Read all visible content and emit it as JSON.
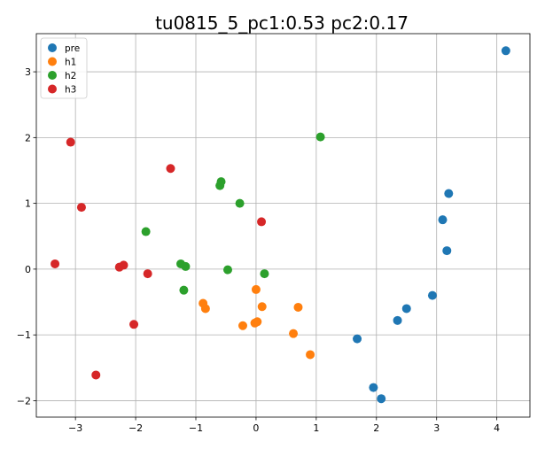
{
  "chart_data": {
    "type": "scatter",
    "title": "tu0815_5_pc1:0.53 pc2:0.17",
    "xlabel": "",
    "ylabel": "",
    "xlim": [
      -3.65,
      4.55
    ],
    "ylim": [
      -2.25,
      3.58
    ],
    "xticks": [
      -3,
      -2,
      -1,
      0,
      1,
      2,
      3,
      4
    ],
    "yticks": [
      -2,
      -1,
      0,
      1,
      2,
      3
    ],
    "xtick_labels": [
      "−3",
      "−2",
      "−1",
      "0",
      "1",
      "2",
      "3",
      "4"
    ],
    "ytick_labels": [
      "−2",
      "−1",
      "0",
      "1",
      "2",
      "3"
    ],
    "grid": true,
    "legend_position": "top-left",
    "series": [
      {
        "name": "pre",
        "color": "#1f77b4",
        "points": [
          [
            4.15,
            3.32
          ],
          [
            3.2,
            1.15
          ],
          [
            3.1,
            0.75
          ],
          [
            3.17,
            0.28
          ],
          [
            2.93,
            -0.4
          ],
          [
            2.5,
            -0.6
          ],
          [
            2.35,
            -0.78
          ],
          [
            1.68,
            -1.06
          ],
          [
            1.95,
            -1.8
          ],
          [
            2.08,
            -1.97
          ]
        ]
      },
      {
        "name": "h1",
        "color": "#ff7f0e",
        "points": [
          [
            0.0,
            -0.31
          ],
          [
            -0.88,
            -0.52
          ],
          [
            -0.84,
            -0.6
          ],
          [
            0.1,
            -0.57
          ],
          [
            0.7,
            -0.58
          ],
          [
            0.02,
            -0.8
          ],
          [
            -0.02,
            -0.82
          ],
          [
            -0.22,
            -0.86
          ],
          [
            0.62,
            -0.98
          ],
          [
            0.9,
            -1.3
          ]
        ]
      },
      {
        "name": "h2",
        "color": "#2ca02c",
        "points": [
          [
            1.07,
            2.01
          ],
          [
            -0.58,
            1.33
          ],
          [
            -0.6,
            1.27
          ],
          [
            -0.27,
            1.0
          ],
          [
            -1.83,
            0.57
          ],
          [
            -1.25,
            0.08
          ],
          [
            -1.17,
            0.04
          ],
          [
            -0.47,
            -0.01
          ],
          [
            0.14,
            -0.07
          ],
          [
            -1.2,
            -0.32
          ]
        ]
      },
      {
        "name": "h3",
        "color": "#d62728",
        "points": [
          [
            -3.08,
            1.93
          ],
          [
            -1.42,
            1.53
          ],
          [
            -2.9,
            0.94
          ],
          [
            0.09,
            0.72
          ],
          [
            -3.34,
            0.08
          ],
          [
            -2.27,
            0.03
          ],
          [
            -2.2,
            0.06
          ],
          [
            -1.8,
            -0.07
          ],
          [
            -2.03,
            -0.84
          ],
          [
            -2.66,
            -1.61
          ]
        ]
      }
    ]
  }
}
